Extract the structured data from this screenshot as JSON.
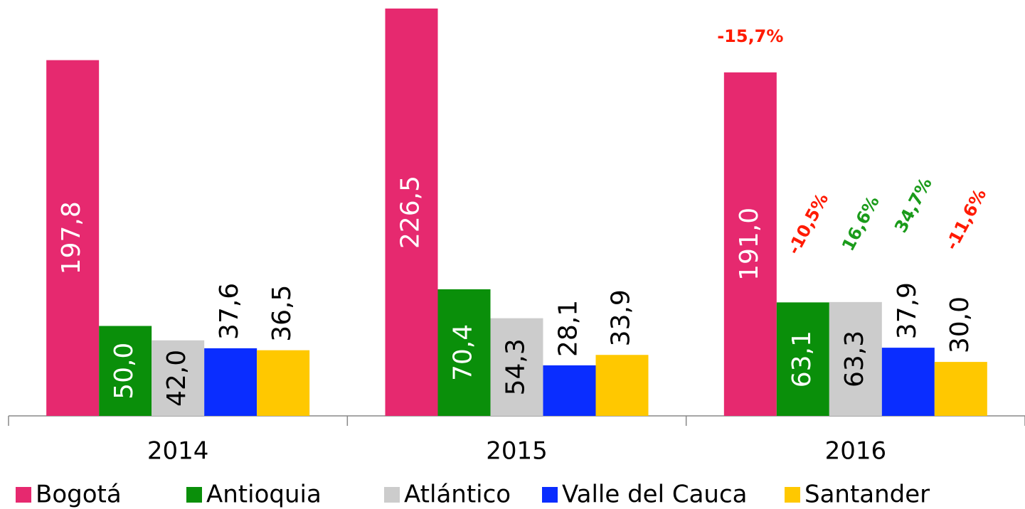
{
  "chart_data": {
    "type": "bar",
    "categories": [
      "2014",
      "2015",
      "2016"
    ],
    "series": [
      {
        "name": "Bogotá",
        "color": "#e6296f",
        "values": [
          197.8,
          226.5,
          191.0
        ],
        "value_labels": [
          "197,8",
          "226,5",
          "191,0"
        ],
        "label_inside": true,
        "label_color": "#ffffff",
        "annotation": "-15,7%",
        "annotation_color": "#ff1a00"
      },
      {
        "name": "Antioquia",
        "color": "#0a8f0a",
        "values": [
          50.0,
          70.4,
          63.1
        ],
        "value_labels": [
          "50,0",
          "70,4",
          "63,1"
        ],
        "label_inside": true,
        "label_color": "#ffffff",
        "annotation": "-10,5%",
        "annotation_color": "#ff1a00"
      },
      {
        "name": "Atlántico",
        "color": "#cccccc",
        "values": [
          42.0,
          54.3,
          63.3
        ],
        "value_labels": [
          "42,0",
          "54,3",
          "63,3"
        ],
        "label_inside": true,
        "label_color": "#000000",
        "annotation": "16,6%",
        "annotation_color": "#1a9b1a"
      },
      {
        "name": "Valle del Cauca",
        "color": "#0a2dff",
        "values": [
          37.6,
          28.1,
          37.9
        ],
        "value_labels": [
          "37,6",
          "28,1",
          "37,9"
        ],
        "label_inside": false,
        "label_color": "#000000",
        "annotation": "34,7%",
        "annotation_color": "#1a9b1a"
      },
      {
        "name": "Santander",
        "color": "#ffc800",
        "values": [
          36.5,
          33.9,
          30.0
        ],
        "value_labels": [
          "36,5",
          "33,9",
          "30,0"
        ],
        "label_inside": false,
        "label_color": "#000000",
        "annotation": "-11,6%",
        "annotation_color": "#ff1a00"
      }
    ]
  }
}
